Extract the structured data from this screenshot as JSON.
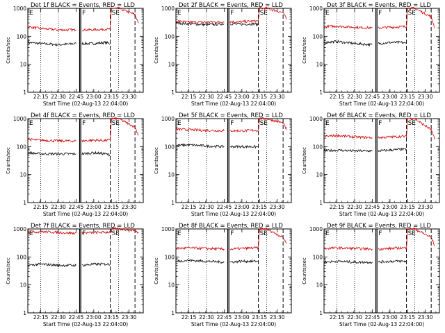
{
  "figure": {
    "xlabel": "Start Time (02-Aug-13 22:04:00)",
    "ylabel": "Counts/sec",
    "colors": {
      "events": "#000000",
      "lld": "#d00000",
      "axis": "#000000"
    }
  },
  "chart_data": [
    {
      "type": "line",
      "title": "Det 1f BLACK = Events, RED = LLD",
      "xlabel": "Start Time (02-Aug-13 22:04:00)",
      "ylabel": "Counts/sec",
      "yscale": "log",
      "ylim": [
        1,
        1000
      ],
      "yticks": [
        "1",
        "10",
        "100",
        "1000"
      ],
      "xlim": [
        "22:04",
        "23:42"
      ],
      "xticks": [
        "22:15",
        "22:30",
        "22:45",
        "23:00",
        "23:15",
        "23:30"
      ],
      "annotations": [
        "E",
        "F",
        "SE"
      ],
      "event_markers": [
        "22:15",
        "22:30",
        "22:48",
        "22:49",
        "23:14",
        "23:21",
        "23:35"
      ],
      "series": [
        {
          "name": "Events",
          "x": [
            "22:04",
            "22:15",
            "22:30",
            "22:45",
            "22:48",
            "22:50",
            "23:00",
            "23:10",
            "23:14"
          ],
          "values": [
            60,
            55,
            50,
            55,
            0,
            55,
            55,
            60,
            55
          ]
        },
        {
          "name": "LLD",
          "x": [
            "22:04",
            "22:15",
            "22:30",
            "22:45",
            "22:48",
            "22:50",
            "23:00",
            "23:10",
            "23:14",
            "23:15",
            "23:21",
            "23:35",
            "23:38"
          ],
          "values": [
            220,
            190,
            170,
            170,
            0,
            170,
            170,
            180,
            180,
            1000,
            1000,
            600,
            300
          ]
        }
      ]
    },
    {
      "type": "line",
      "title": "Det 2f BLACK = Events, RED = LLD",
      "xlabel": "Start Time (02-Aug-13 22:04:00)",
      "ylabel": "Counts/sec",
      "yscale": "log",
      "ylim": [
        1,
        1000
      ],
      "yticks": [
        "1",
        "10",
        "100",
        "1000"
      ],
      "xlim": [
        "22:04",
        "23:42"
      ],
      "xticks": [
        "22:15",
        "22:30",
        "22:45",
        "23:00",
        "23:15",
        "23:30"
      ],
      "annotations": [
        "E",
        "F",
        "SE"
      ],
      "event_markers": [
        "22:15",
        "22:30",
        "22:48",
        "22:49",
        "23:14",
        "23:21",
        "23:35"
      ],
      "series": [
        {
          "name": "Events",
          "x": [
            "22:04",
            "22:15",
            "22:30",
            "22:45",
            "22:48",
            "22:50",
            "23:00",
            "23:10",
            "23:14"
          ],
          "values": [
            300,
            280,
            260,
            280,
            0,
            280,
            270,
            280,
            260
          ]
        },
        {
          "name": "LLD",
          "x": [
            "22:04",
            "22:15",
            "22:30",
            "22:45",
            "22:48",
            "22:50",
            "23:00",
            "23:10",
            "23:14",
            "23:15",
            "23:21",
            "23:35",
            "23:38"
          ],
          "values": [
            350,
            320,
            320,
            330,
            0,
            330,
            330,
            350,
            350,
            1000,
            1000,
            700,
            400
          ]
        }
      ]
    },
    {
      "type": "line",
      "title": "Det 3f BLACK = Events, RED = LLD",
      "xlabel": "Start Time (02-Aug-13 22:04:00)",
      "ylabel": "Counts/sec",
      "yscale": "log",
      "ylim": [
        1,
        1000
      ],
      "yticks": [
        "1",
        "10",
        "100",
        "1000"
      ],
      "xlim": [
        "22:04",
        "23:42"
      ],
      "xticks": [
        "22:15",
        "22:30",
        "22:45",
        "23:00",
        "23:15",
        "23:30"
      ],
      "annotations": [
        "E",
        "F",
        "SE"
      ],
      "event_markers": [
        "22:15",
        "22:30",
        "22:48",
        "22:49",
        "23:14",
        "23:21",
        "23:35"
      ],
      "series": [
        {
          "name": "Events",
          "x": [
            "22:04",
            "22:15",
            "22:30",
            "22:45",
            "22:48",
            "22:50",
            "23:00",
            "23:10",
            "23:14"
          ],
          "values": [
            60,
            65,
            55,
            50,
            0,
            55,
            60,
            60,
            55
          ]
        },
        {
          "name": "LLD",
          "x": [
            "22:04",
            "22:15",
            "22:30",
            "22:45",
            "22:48",
            "22:50",
            "23:00",
            "23:10",
            "23:14",
            "23:15",
            "23:21",
            "23:35",
            "23:38"
          ],
          "values": [
            220,
            230,
            210,
            200,
            0,
            200,
            210,
            220,
            220,
            1000,
            1000,
            500,
            200
          ]
        }
      ]
    },
    {
      "type": "line",
      "title": "Det 4f BLACK = Events, RED = LLD",
      "xlabel": "Start Time (02-Aug-13 22:04:00)",
      "ylabel": "Counts/sec",
      "yscale": "log",
      "ylim": [
        1,
        1000
      ],
      "yticks": [
        "1",
        "10",
        "100",
        "1000"
      ],
      "xlim": [
        "22:04",
        "23:42"
      ],
      "xticks": [
        "22:15",
        "22:30",
        "22:45",
        "23:00",
        "23:15",
        "23:30"
      ],
      "annotations": [
        "E",
        "F",
        "SE"
      ],
      "event_markers": [
        "22:15",
        "22:30",
        "22:48",
        "22:49",
        "23:14",
        "23:21",
        "23:35"
      ],
      "series": [
        {
          "name": "Events",
          "x": [
            "22:04",
            "22:15",
            "22:30",
            "22:45",
            "22:48",
            "22:50",
            "23:00",
            "23:10",
            "23:14"
          ],
          "values": [
            60,
            55,
            55,
            55,
            0,
            55,
            60,
            55,
            50
          ]
        },
        {
          "name": "LLD",
          "x": [
            "22:04",
            "22:15",
            "22:30",
            "22:45",
            "22:48",
            "22:50",
            "23:00",
            "23:10",
            "23:14",
            "23:15",
            "23:21",
            "23:35",
            "23:38"
          ],
          "values": [
            180,
            170,
            160,
            160,
            0,
            160,
            170,
            165,
            170,
            1000,
            1000,
            500,
            250
          ]
        }
      ]
    },
    {
      "type": "line",
      "title": "Det 5f BLACK = Events, RED = LLD",
      "xlabel": "Start Time (02-Aug-13 22:04:00)",
      "ylabel": "Counts/sec",
      "yscale": "log",
      "ylim": [
        1,
        1000
      ],
      "yticks": [
        "1",
        "10",
        "100",
        "1000"
      ],
      "xlim": [
        "22:04",
        "23:42"
      ],
      "xticks": [
        "22:15",
        "22:30",
        "22:45",
        "23:00",
        "23:15",
        "23:30"
      ],
      "annotations": [
        "E",
        "F",
        "SE"
      ],
      "event_markers": [
        "22:15",
        "22:30",
        "22:48",
        "22:49",
        "23:14",
        "23:21",
        "23:35"
      ],
      "series": [
        {
          "name": "Events",
          "x": [
            "22:04",
            "22:15",
            "22:30",
            "22:45",
            "22:48",
            "22:50",
            "23:00",
            "23:10",
            "23:14"
          ],
          "values": [
            110,
            115,
            105,
            100,
            0,
            100,
            100,
            100,
            95
          ]
        },
        {
          "name": "LLD",
          "x": [
            "22:04",
            "22:15",
            "22:30",
            "22:45",
            "22:48",
            "22:50",
            "23:00",
            "23:10",
            "23:14",
            "23:15",
            "23:21",
            "23:35",
            "23:38"
          ],
          "values": [
            420,
            400,
            380,
            370,
            0,
            370,
            370,
            380,
            380,
            1000,
            1000,
            700,
            400
          ]
        }
      ]
    },
    {
      "type": "line",
      "title": "Det 6f BLACK = Events, RED = LLD",
      "xlabel": "Start Time (02-Aug-13 22:04:00)",
      "ylabel": "Counts/sec",
      "yscale": "log",
      "ylim": [
        1,
        1000
      ],
      "yticks": [
        "1",
        "10",
        "100",
        "1000"
      ],
      "xlim": [
        "22:04",
        "23:42"
      ],
      "xticks": [
        "22:15",
        "22:30",
        "22:45",
        "23:00",
        "23:15",
        "23:30"
      ],
      "annotations": [
        "E",
        "F",
        "SE"
      ],
      "event_markers": [
        "22:15",
        "22:30",
        "22:48",
        "22:49",
        "23:14",
        "23:21",
        "23:35"
      ],
      "series": [
        {
          "name": "Events",
          "x": [
            "22:04",
            "22:15",
            "22:30",
            "22:45",
            "22:48",
            "22:50",
            "23:00",
            "23:10",
            "23:14"
          ],
          "values": [
            70,
            75,
            70,
            70,
            0,
            70,
            75,
            80,
            80
          ]
        },
        {
          "name": "LLD",
          "x": [
            "22:04",
            "22:15",
            "22:30",
            "22:45",
            "22:48",
            "22:50",
            "23:00",
            "23:10",
            "23:14",
            "23:15",
            "23:21",
            "23:35",
            "23:38"
          ],
          "values": [
            230,
            250,
            220,
            210,
            0,
            210,
            220,
            230,
            230,
            1000,
            1000,
            400,
            180
          ]
        }
      ]
    },
    {
      "type": "line",
      "title": "Det 7f BLACK = Events, RED = LLD",
      "xlabel": "Start Time (02-Aug-13 22:04:00)",
      "ylabel": "Counts/sec",
      "yscale": "log",
      "ylim": [
        1,
        1000
      ],
      "yticks": [
        "1",
        "10",
        "100",
        "1000"
      ],
      "xlim": [
        "22:04",
        "23:42"
      ],
      "xticks": [
        "22:15",
        "22:30",
        "22:45",
        "23:00",
        "23:15",
        "23:30"
      ],
      "annotations": [
        "E",
        "F",
        "SE"
      ],
      "event_markers": [
        "22:15",
        "22:30",
        "22:48",
        "22:49",
        "23:14",
        "23:21",
        "23:35"
      ],
      "series": [
        {
          "name": "Events",
          "x": [
            "22:04",
            "22:15",
            "22:30",
            "22:45",
            "22:48",
            "22:50",
            "23:00",
            "23:10",
            "23:14"
          ],
          "values": [
            50,
            55,
            50,
            50,
            0,
            50,
            55,
            55,
            55
          ]
        },
        {
          "name": "LLD",
          "x": [
            "22:04",
            "22:15",
            "22:30",
            "22:45",
            "22:48",
            "22:50",
            "23:00",
            "23:10",
            "23:14",
            "23:15",
            "23:21",
            "23:35",
            "23:38"
          ],
          "values": [
            750,
            800,
            750,
            700,
            0,
            720,
            740,
            760,
            780,
            1000,
            1000,
            900,
            700
          ]
        }
      ]
    },
    {
      "type": "line",
      "title": "Det 8f BLACK = Events, RED = LLD",
      "xlabel": "Start Time (02-Aug-13 22:04:00)",
      "ylabel": "Counts/sec",
      "yscale": "log",
      "ylim": [
        1,
        1000
      ],
      "yticks": [
        "1",
        "10",
        "100",
        "1000"
      ],
      "xlim": [
        "22:04",
        "23:42"
      ],
      "xticks": [
        "22:15",
        "22:30",
        "22:45",
        "23:00",
        "23:15",
        "23:30"
      ],
      "annotations": [
        "E",
        "F",
        "SE"
      ],
      "event_markers": [
        "22:15",
        "22:30",
        "22:48",
        "22:49",
        "23:14",
        "23:21",
        "23:35"
      ],
      "series": [
        {
          "name": "Events",
          "x": [
            "22:04",
            "22:15",
            "22:30",
            "22:45",
            "22:48",
            "22:50",
            "23:00",
            "23:10",
            "23:14"
          ],
          "values": [
            70,
            75,
            70,
            65,
            0,
            65,
            70,
            70,
            70
          ]
        },
        {
          "name": "LLD",
          "x": [
            "22:04",
            "22:15",
            "22:30",
            "22:45",
            "22:48",
            "22:50",
            "23:00",
            "23:10",
            "23:14",
            "23:15",
            "23:21",
            "23:35",
            "23:38"
          ],
          "values": [
            200,
            210,
            200,
            190,
            0,
            190,
            200,
            210,
            210,
            1000,
            1000,
            500,
            300
          ]
        }
      ]
    },
    {
      "type": "line",
      "title": "Det 9f BLACK = Events, RED = LLD",
      "xlabel": "Start Time (02-Aug-13 22:04:00)",
      "ylabel": "Counts/sec",
      "yscale": "log",
      "ylim": [
        1,
        1000
      ],
      "yticks": [
        "1",
        "10",
        "100",
        "1000"
      ],
      "xlim": [
        "22:04",
        "23:42"
      ],
      "xticks": [
        "22:15",
        "22:30",
        "22:45",
        "23:00",
        "23:15",
        "23:30"
      ],
      "annotations": [
        "E",
        "F",
        "SE"
      ],
      "event_markers": [
        "22:15",
        "22:30",
        "22:48",
        "22:49",
        "23:14",
        "23:21",
        "23:35"
      ],
      "series": [
        {
          "name": "Events",
          "x": [
            "22:04",
            "22:15",
            "22:30",
            "22:45",
            "22:48",
            "22:50",
            "23:00",
            "23:10",
            "23:14"
          ],
          "values": [
            65,
            70,
            65,
            65,
            0,
            65,
            70,
            70,
            70
          ]
        },
        {
          "name": "LLD",
          "x": [
            "22:04",
            "22:15",
            "22:30",
            "22:45",
            "22:48",
            "22:50",
            "23:00",
            "23:10",
            "23:14",
            "23:15",
            "23:21",
            "23:35",
            "23:38"
          ],
          "values": [
            200,
            210,
            200,
            190,
            0,
            190,
            200,
            210,
            210,
            1000,
            1000,
            500,
            250
          ]
        }
      ]
    }
  ]
}
